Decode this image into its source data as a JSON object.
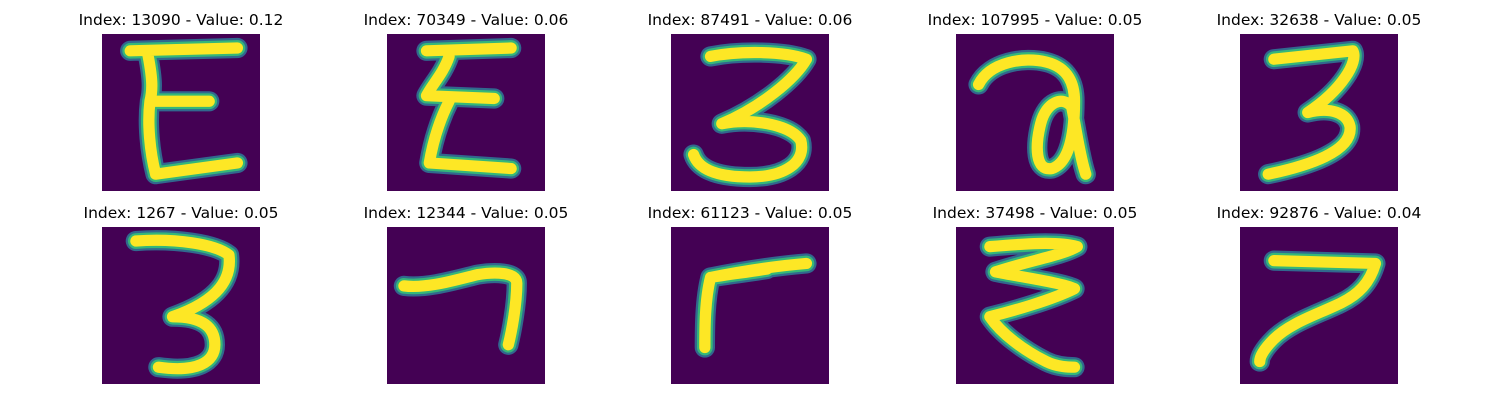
{
  "colors": {
    "background": "#440154",
    "stroke_core": "#fde725",
    "stroke_mid": "#35b779",
    "stroke_edge": "#31688e"
  },
  "panels": [
    {
      "title": "Index: 13090 - Value: 0.12",
      "index": 13090,
      "value": 0.12,
      "glyph": "E"
    },
    {
      "title": "Index: 70349 - Value: 0.06",
      "index": 70349,
      "value": 0.06,
      "glyph": "E"
    },
    {
      "title": "Index: 87491 - Value: 0.06",
      "index": 87491,
      "value": 0.06,
      "glyph": "3"
    },
    {
      "title": "Index: 107995 - Value: 0.05",
      "index": 107995,
      "value": 0.05,
      "glyph": "a"
    },
    {
      "title": "Index: 32638 - Value: 0.05",
      "index": 32638,
      "value": 0.05,
      "glyph": "3"
    },
    {
      "title": "Index: 1267 - Value: 0.05",
      "index": 1267,
      "value": 0.05,
      "glyph": "3"
    },
    {
      "title": "Index: 12344 - Value: 0.05",
      "index": 12344,
      "value": 0.05,
      "glyph": "7"
    },
    {
      "title": "Index: 61123 - Value: 0.05",
      "index": 61123,
      "value": 0.05,
      "glyph": "r"
    },
    {
      "title": "Index: 37498 - Value: 0.05",
      "index": 37498,
      "value": 0.05,
      "glyph": "3"
    },
    {
      "title": "Index: 92876 - Value: 0.04",
      "index": 92876,
      "value": 0.04,
      "glyph": "7"
    }
  ]
}
